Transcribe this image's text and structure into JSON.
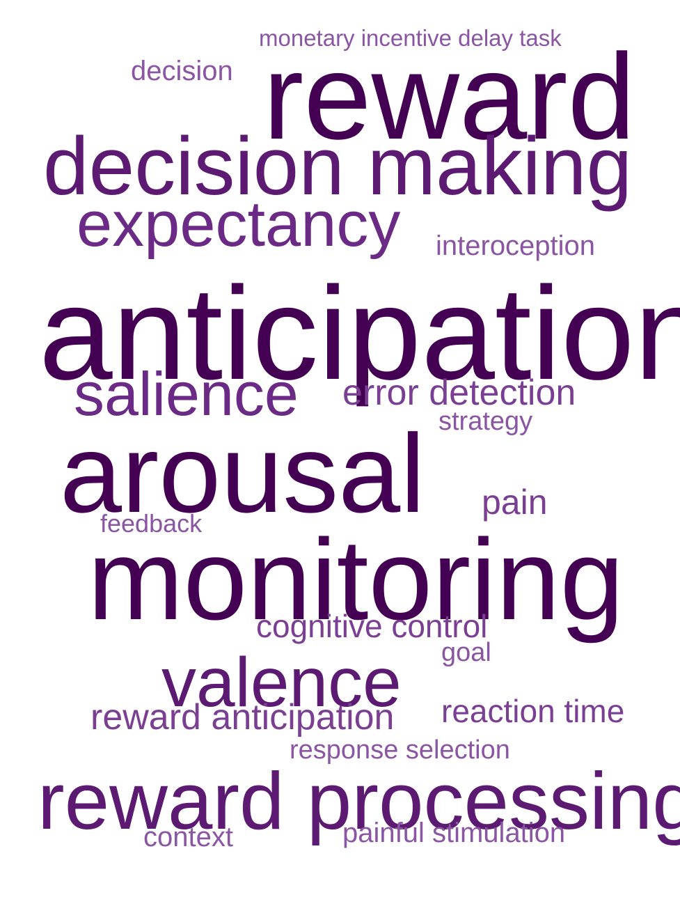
{
  "words": [
    {
      "text": "anticipation",
      "color": "#440154"
    },
    {
      "text": "monitoring",
      "color": "#440154"
    },
    {
      "text": "reward",
      "color": "#440154"
    },
    {
      "text": "arousal",
      "color": "#440154"
    },
    {
      "text": "decision making",
      "color": "#5c1a72"
    },
    {
      "text": "reward processing",
      "color": "#5c1a72"
    },
    {
      "text": "valence",
      "color": "#5c1a72"
    },
    {
      "text": "expectancy",
      "color": "#6a2a85"
    },
    {
      "text": "salience",
      "color": "#6a2a85"
    },
    {
      "text": "error detection",
      "color": "#7a3f93"
    },
    {
      "text": "reward anticipation",
      "color": "#7a3f93"
    },
    {
      "text": "pain",
      "color": "#7a3f93"
    },
    {
      "text": "cognitive control",
      "color": "#7a3f93"
    },
    {
      "text": "reaction time",
      "color": "#7a3f93"
    },
    {
      "text": "interoception",
      "color": "#8a55a2"
    },
    {
      "text": "decision",
      "color": "#8a55a2"
    },
    {
      "text": "strategy",
      "color": "#8a55a2"
    },
    {
      "text": "goal",
      "color": "#8a55a2"
    },
    {
      "text": "response selection",
      "color": "#8a55a2"
    },
    {
      "text": "painful stimulation",
      "color": "#8a55a2"
    },
    {
      "text": "context",
      "color": "#8a55a2"
    },
    {
      "text": "feedback",
      "color": "#8a55a2"
    },
    {
      "text": "monetary incentive delay task",
      "color": "#8a55a2"
    }
  ]
}
